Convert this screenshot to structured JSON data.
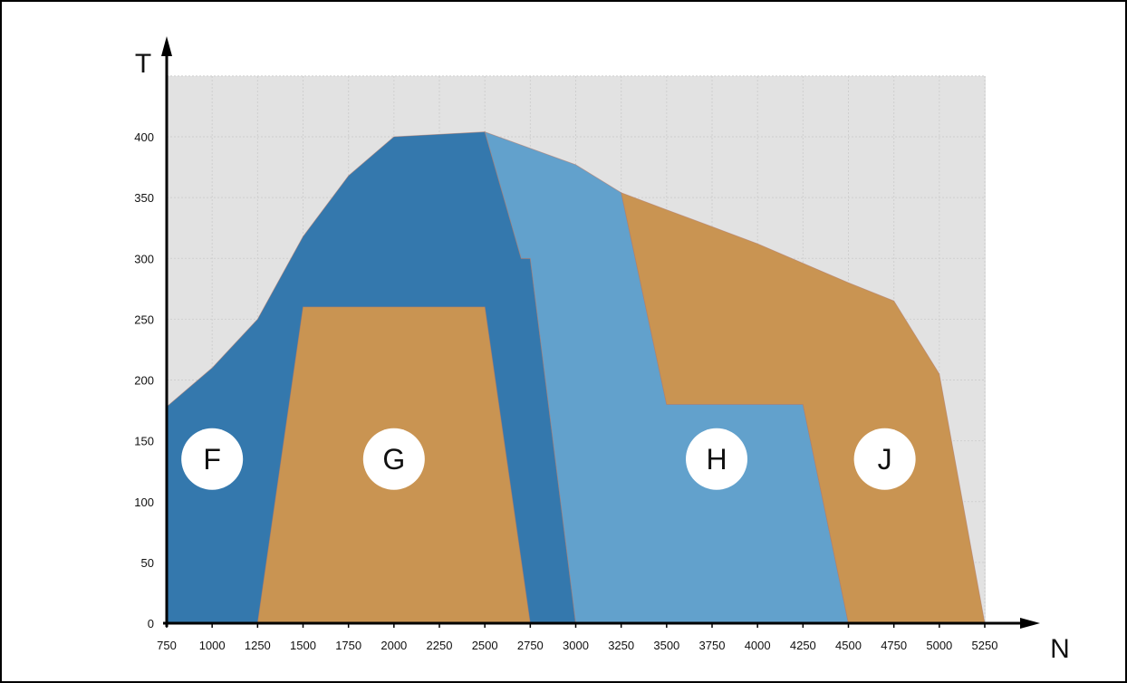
{
  "chart_data": {
    "type": "area",
    "xlabel": "N",
    "ylabel": "T",
    "xlim": [
      750,
      5250
    ],
    "ylim": [
      0,
      450
    ],
    "grid": true,
    "x_ticks": [
      750,
      1000,
      1250,
      1500,
      1750,
      2000,
      2250,
      2500,
      2750,
      3000,
      3250,
      3500,
      3750,
      4000,
      4250,
      4500,
      4750,
      5000,
      5250
    ],
    "y_ticks": [
      0,
      50,
      100,
      150,
      200,
      250,
      300,
      350,
      400
    ],
    "colors": {
      "plot_background": "#e2e2e2",
      "grid": "#cfcfcf",
      "dark_blue": "#3478ad",
      "light_blue": "#62a1cc",
      "orange": "#c99452",
      "label_circle": "#ffffff"
    },
    "regions": [
      {
        "name": "F",
        "fill": "dark_blue",
        "polygon": [
          [
            750,
            0
          ],
          [
            750,
            178
          ],
          [
            1000,
            210
          ],
          [
            1250,
            250
          ],
          [
            1500,
            318
          ],
          [
            1750,
            368
          ],
          [
            2000,
            400
          ],
          [
            2500,
            404
          ],
          [
            2700,
            300
          ],
          [
            2750,
            300
          ],
          [
            3000,
            0
          ]
        ],
        "label_at": [
          1000,
          135
        ]
      },
      {
        "name": "G",
        "fill": "orange",
        "polygon": [
          [
            1250,
            0
          ],
          [
            1500,
            260
          ],
          [
            2500,
            260
          ],
          [
            2750,
            0
          ]
        ],
        "label_at": [
          2000,
          135
        ]
      },
      {
        "name": "H",
        "fill": "light_blue",
        "polygon": [
          [
            2500,
            404
          ],
          [
            3000,
            377
          ],
          [
            3250,
            354
          ],
          [
            3500,
            180
          ],
          [
            4250,
            180
          ],
          [
            4500,
            0
          ],
          [
            3000,
            0
          ],
          [
            2750,
            300
          ],
          [
            2700,
            300
          ]
        ],
        "label_at": [
          3775,
          135
        ]
      },
      {
        "name": "J",
        "fill": "orange",
        "polygon": [
          [
            3250,
            354
          ],
          [
            3500,
            340
          ],
          [
            3750,
            326
          ],
          [
            4000,
            312
          ],
          [
            4250,
            296
          ],
          [
            4500,
            280
          ],
          [
            4750,
            265
          ],
          [
            5000,
            205
          ],
          [
            5250,
            0
          ],
          [
            4500,
            0
          ],
          [
            4250,
            180
          ],
          [
            3500,
            180
          ]
        ],
        "label_at": [
          4700,
          135
        ]
      }
    ]
  }
}
